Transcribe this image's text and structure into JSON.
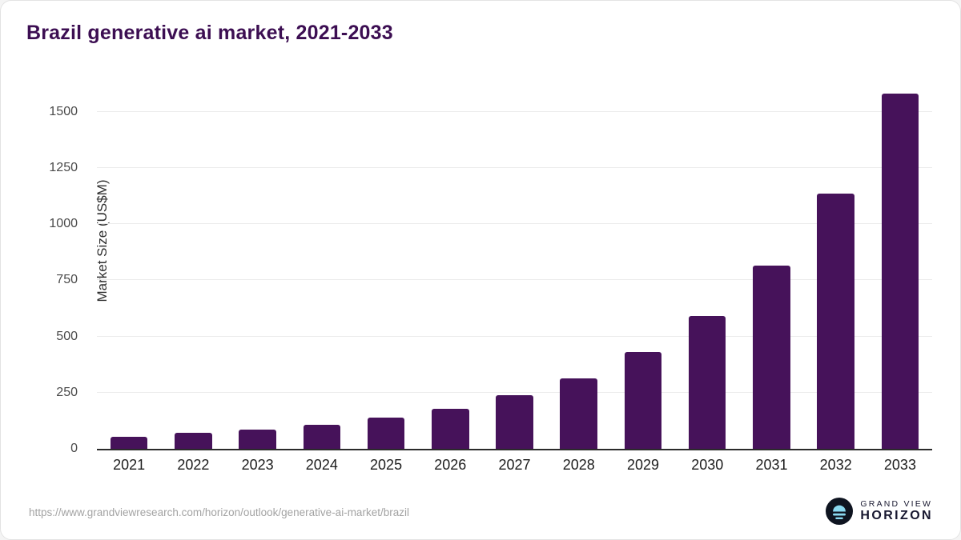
{
  "title": "Brazil generative ai market, 2021-2033",
  "chart_data": {
    "type": "bar",
    "title": "Brazil generative ai market, 2021-2033",
    "categories": [
      "2021",
      "2022",
      "2023",
      "2024",
      "2025",
      "2026",
      "2027",
      "2028",
      "2029",
      "2030",
      "2031",
      "2032",
      "2033"
    ],
    "values": [
      55,
      70,
      85,
      108,
      140,
      178,
      238,
      315,
      430,
      590,
      815,
      1135,
      1580
    ],
    "xlabel": "",
    "ylabel": "Market Size (US$M)",
    "yticks": [
      0,
      250,
      500,
      750,
      1000,
      1250,
      1500
    ],
    "ylim": [
      0,
      1620
    ],
    "grid": true,
    "legend": "none",
    "bar_color": "#46125a"
  },
  "footer": {
    "source_url": "https://www.grandviewresearch.com/horizon/outlook/generative-ai-market/brazil",
    "logo": {
      "line1": "GRAND VIEW",
      "line2": "HORIZON"
    }
  },
  "colors": {
    "bar": "#46125a",
    "title": "#3c0e52",
    "gridline": "#ebebeb",
    "axis": "#2b2b2b",
    "source_text": "#a3a3a3",
    "logo_accent": "#8ad9f0",
    "logo_dark": "#0e1420"
  }
}
